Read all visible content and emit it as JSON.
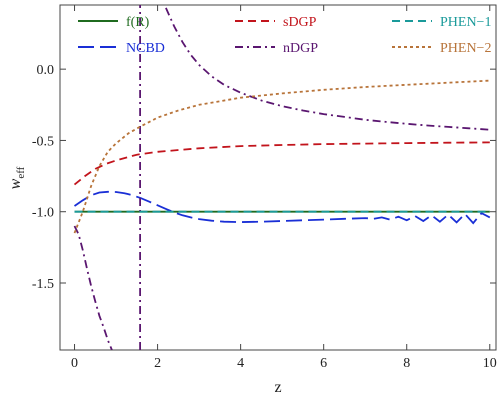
{
  "chart_data": {
    "type": "line",
    "title": "",
    "xlabel": "z",
    "ylabel": "w",
    "ylabel_sub": "eff",
    "xlim": [
      -0.35,
      10.15
    ],
    "ylim": [
      -1.97,
      0.45
    ],
    "xticks": [
      0,
      2,
      4,
      6,
      8,
      10
    ],
    "xtick_labels": [
      "0",
      "2",
      "4",
      "6",
      "8",
      "10"
    ],
    "yticks": [
      0.0,
      -0.5,
      -1.0,
      -1.5
    ],
    "ytick_labels": [
      "0.0",
      "-0.5",
      "-1.0",
      "-1.5"
    ],
    "grid": false,
    "legend_position": "top",
    "series": [
      {
        "name": "f(R)",
        "color": "#1f6b1f",
        "dash": "solid",
        "x": [
          0,
          1,
          2,
          3,
          4,
          5,
          6,
          7,
          8,
          9,
          10
        ],
        "y": [
          -1.0,
          -1.0,
          -1.0,
          -1.0,
          -1.0,
          -1.0,
          -1.0,
          -1.0,
          -1.0,
          -1.0,
          -1.0
        ]
      },
      {
        "name": "NCBD",
        "color": "#1a2fd6",
        "dash": "long",
        "x": [
          0,
          0.2,
          0.4,
          0.6,
          0.8,
          1.0,
          1.2,
          1.4,
          1.6,
          1.8,
          2.0,
          2.2,
          2.4,
          2.6,
          2.8,
          3.0,
          3.3,
          3.6,
          4.0,
          4.5,
          5.0,
          5.5,
          6.0,
          6.5,
          7.0,
          7.2,
          7.4,
          7.6,
          7.8,
          8.0,
          8.2,
          8.4,
          8.6,
          8.8,
          9.0,
          9.2,
          9.4,
          9.6,
          9.8,
          10.0
        ],
        "y": [
          -0.96,
          -0.92,
          -0.885,
          -0.865,
          -0.86,
          -0.862,
          -0.87,
          -0.885,
          -0.905,
          -0.93,
          -0.955,
          -0.98,
          -1.005,
          -1.025,
          -1.04,
          -1.052,
          -1.063,
          -1.07,
          -1.073,
          -1.07,
          -1.065,
          -1.06,
          -1.055,
          -1.05,
          -1.045,
          -1.05,
          -1.04,
          -1.055,
          -1.035,
          -1.06,
          -1.03,
          -1.065,
          -1.025,
          -1.07,
          -1.02,
          -1.075,
          -1.015,
          -1.08,
          -1.01,
          -1.04
        ]
      },
      {
        "name": "sDGP",
        "color": "#c2141c",
        "dash": "dashed",
        "x": [
          0,
          0.25,
          0.5,
          0.75,
          1.0,
          1.5,
          2.0,
          3.0,
          4.0,
          5.0,
          6.0,
          7.0,
          8.0,
          9.0,
          10.0
        ],
        "y": [
          -0.81,
          -0.75,
          -0.7,
          -0.665,
          -0.64,
          -0.6,
          -0.58,
          -0.555,
          -0.54,
          -0.532,
          -0.526,
          -0.522,
          -0.519,
          -0.516,
          -0.514
        ]
      },
      {
        "name": "nDGP",
        "color": "#5a1670",
        "dash": "dashdot",
        "x": [
          2.2,
          2.4,
          2.6,
          2.8,
          3.0,
          3.3,
          3.6,
          4.0,
          4.5,
          5.0,
          5.5,
          6.0,
          6.5,
          7.0,
          7.5,
          8.0,
          8.5,
          9.0,
          9.5,
          10.0
        ],
        "y": [
          0.43,
          0.3,
          0.19,
          0.1,
          0.03,
          -0.05,
          -0.11,
          -0.165,
          -0.22,
          -0.26,
          -0.29,
          -0.315,
          -0.335,
          -0.355,
          -0.37,
          -0.383,
          -0.395,
          -0.405,
          -0.415,
          -0.425
        ]
      },
      {
        "name": "nDGP-branch",
        "color": "#5a1670",
        "dash": "dashdot",
        "x": [
          0,
          0.1,
          0.2,
          0.3,
          0.4,
          0.5,
          0.6,
          0.7,
          0.8,
          0.9
        ],
        "y": [
          -1.1,
          -1.16,
          -1.27,
          -1.4,
          -1.52,
          -1.63,
          -1.73,
          -1.81,
          -1.9,
          -1.97
        ]
      },
      {
        "name": "nDGP-asymptote",
        "color": "#5a1670",
        "dash": "dashdot",
        "x": [
          1.58,
          1.58
        ],
        "y": [
          -1.97,
          0.45
        ]
      },
      {
        "name": "PHEN-1",
        "color": "#1a9a9a",
        "dash": "dashed",
        "x": [
          0,
          2,
          4,
          6,
          8,
          10
        ],
        "y": [
          -1.0,
          -1.0,
          -1.0,
          -1.0,
          -1.0,
          -1.0
        ]
      },
      {
        "name": "PHEN-2",
        "color": "#b8743a",
        "dash": "dotted",
        "x": [
          0,
          0.2,
          0.4,
          0.6,
          0.8,
          1.0,
          1.3,
          1.6,
          2.0,
          2.5,
          3.0,
          4.0,
          5.0,
          6.0,
          7.0,
          8.0,
          9.0,
          10.0
        ],
        "y": [
          -1.15,
          -1.0,
          -0.82,
          -0.68,
          -0.58,
          -0.52,
          -0.45,
          -0.4,
          -0.34,
          -0.29,
          -0.25,
          -0.2,
          -0.17,
          -0.145,
          -0.125,
          -0.11,
          -0.095,
          -0.08
        ]
      }
    ],
    "legend": [
      {
        "label": "f(R)",
        "color": "#1f6b1f",
        "dash": "solid"
      },
      {
        "label": "sDGP",
        "color": "#c2141c",
        "dash": "dashed"
      },
      {
        "label": "PHEN−1",
        "color": "#1a9a9a",
        "dash": "dashed"
      },
      {
        "label": "NCBD",
        "color": "#1a2fd6",
        "dash": "long"
      },
      {
        "label": "nDGP",
        "color": "#5a1670",
        "dash": "dashdot"
      },
      {
        "label": "PHEN−2",
        "color": "#b8743a",
        "dash": "dotted"
      }
    ]
  }
}
